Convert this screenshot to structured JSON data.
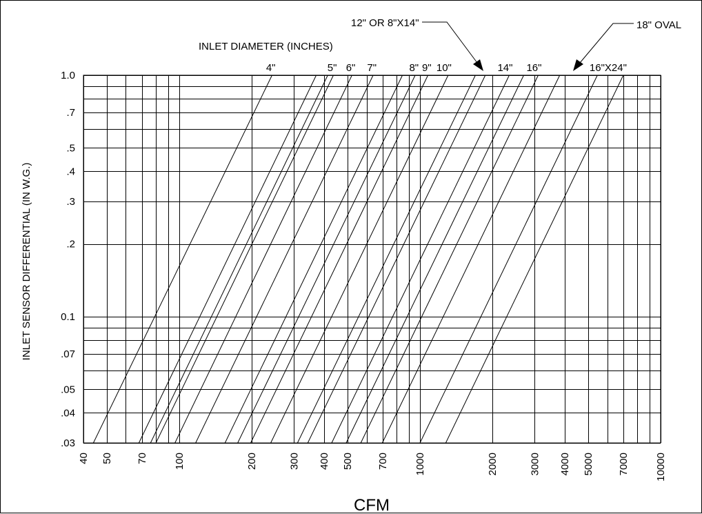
{
  "chart_data": {
    "type": "line",
    "title": "INLET DIAMETER (INCHES)",
    "xlabel": "CFM",
    "ylabel": "INLET SENSOR DIFFERENTIAL (IN W.G.)",
    "x_scale": "log",
    "y_scale": "log",
    "xlim": [
      40,
      10000
    ],
    "ylim": [
      0.03,
      1.0
    ],
    "grid": true,
    "x_ticks": [
      {
        "value": 40,
        "label": "40"
      },
      {
        "value": 50,
        "label": "50"
      },
      {
        "value": 70,
        "label": "70"
      },
      {
        "value": 100,
        "label": "100"
      },
      {
        "value": 200,
        "label": "200"
      },
      {
        "value": 300,
        "label": "300"
      },
      {
        "value": 400,
        "label": "400"
      },
      {
        "value": 500,
        "label": "500"
      },
      {
        "value": 700,
        "label": "700"
      },
      {
        "value": 1000,
        "label": "1000"
      },
      {
        "value": 2000,
        "label": "2000"
      },
      {
        "value": 3000,
        "label": "3000"
      },
      {
        "value": 4000,
        "label": "4000"
      },
      {
        "value": 5000,
        "label": "5000"
      },
      {
        "value": 7000,
        "label": "7000"
      },
      {
        "value": 10000,
        "label": "10000"
      }
    ],
    "x_grid_extra": [
      60,
      80,
      90,
      600,
      800,
      900,
      6000,
      8000,
      9000
    ],
    "y_ticks": [
      {
        "value": 1.0,
        "label": "1.0"
      },
      {
        "value": 0.7,
        "label": ".7"
      },
      {
        "value": 0.5,
        "label": ".5"
      },
      {
        "value": 0.4,
        "label": ".4"
      },
      {
        "value": 0.3,
        "label": ".3"
      },
      {
        "value": 0.2,
        "label": ".2"
      },
      {
        "value": 0.1,
        "label": "0.1"
      },
      {
        "value": 0.07,
        "label": ".07"
      },
      {
        "value": 0.05,
        "label": ".05"
      },
      {
        "value": 0.04,
        "label": ".04"
      },
      {
        "value": 0.03,
        "label": ".03"
      }
    ],
    "y_grid_extra": [
      0.9,
      0.8,
      0.6,
      0.09,
      0.08,
      0.06
    ],
    "series": [
      {
        "name": "4\"",
        "points": [
          [
            44,
            0.03
          ],
          [
            243,
            1.0
          ]
        ]
      },
      {
        "name": "",
        "points": [
          [
            68,
            0.03
          ],
          [
            371,
            1.0
          ]
        ]
      },
      {
        "name": "",
        "points": [
          [
            76,
            0.03
          ],
          [
            414,
            1.0
          ]
        ]
      },
      {
        "name": "5\"",
        "points": [
          [
            80,
            0.03
          ],
          [
            437,
            1.0
          ]
        ]
      },
      {
        "name": "6\"",
        "points": [
          [
            96,
            0.03
          ],
          [
            522,
            1.0
          ]
        ]
      },
      {
        "name": "7\"",
        "points": [
          [
            117,
            0.03
          ],
          [
            639,
            1.0
          ]
        ]
      },
      {
        "name": "",
        "points": [
          [
            155,
            0.03
          ],
          [
            846,
            1.0
          ]
        ]
      },
      {
        "name": "8\"",
        "points": [
          [
            175,
            0.03
          ],
          [
            956,
            1.0
          ]
        ]
      },
      {
        "name": "9\"",
        "points": [
          [
            198,
            0.03
          ],
          [
            1080,
            1.0
          ]
        ]
      },
      {
        "name": "10\"",
        "points": [
          [
            240,
            0.03
          ],
          [
            1310,
            1.0
          ]
        ]
      },
      {
        "name": "",
        "points": [
          [
            310,
            0.03
          ],
          [
            1700,
            1.0
          ]
        ]
      },
      {
        "name": "12\" OR 8\"X14\"",
        "points": [
          [
            342,
            0.03
          ],
          [
            1870,
            1.0
          ]
        ]
      },
      {
        "name": "14\"",
        "points": [
          [
            430,
            0.03
          ],
          [
            2350,
            1.0
          ]
        ]
      },
      {
        "name": "",
        "points": [
          [
            494,
            0.03
          ],
          [
            2700,
            1.0
          ]
        ]
      },
      {
        "name": "16\"",
        "points": [
          [
            568,
            0.03
          ],
          [
            3100,
            1.0
          ]
        ]
      },
      {
        "name": "18\" OVAL",
        "points": [
          [
            698,
            0.03
          ],
          [
            3810,
            1.0
          ]
        ]
      },
      {
        "name": "",
        "points": [
          [
            1000,
            0.03
          ],
          [
            5460,
            1.0
          ]
        ]
      },
      {
        "name": "16\"X24\"",
        "points": [
          [
            1280,
            0.03
          ],
          [
            7000,
            1.0
          ]
        ]
      }
    ],
    "annotations": [
      {
        "text": "12\" OR 8\"X14\"",
        "points_to": [
          1870,
          1.0
        ]
      },
      {
        "text": "18\" OVAL",
        "points_to": [
          3810,
          1.0
        ]
      }
    ]
  }
}
